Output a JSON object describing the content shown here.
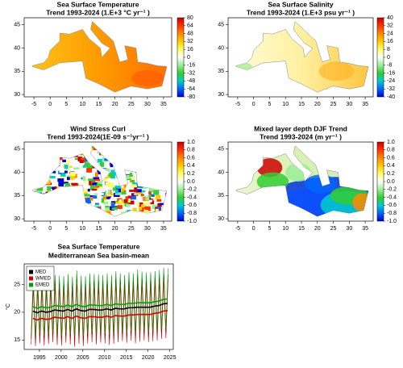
{
  "chart_data": [
    {
      "type": "map",
      "title": "Sea Surface Temperature",
      "subtitle": "Trend 1993-2024 (1.E+3 °C yr⁻¹ )",
      "xlim": [
        -8,
        37.5
      ],
      "ylim": [
        29.5,
        46.5
      ],
      "xticks": [
        -5,
        0,
        5,
        10,
        15,
        20,
        25,
        30,
        35
      ],
      "yticks": [
        30,
        35,
        40,
        45
      ],
      "cbar_lim": [
        -80,
        80
      ],
      "cbar_ticks": [
        80,
        64,
        48,
        32,
        16,
        0,
        -16,
        -32,
        -48,
        -64,
        -80
      ],
      "colormap": [
        "#0000cc",
        "#0066ff",
        "#00cccc",
        "#33cc33",
        "#99ee99",
        "#ffffff",
        "#ffff66",
        "#ffcc00",
        "#ff8800",
        "#ff3300",
        "#cc0000"
      ]
    },
    {
      "type": "map",
      "title": "Sea Surface Salinity",
      "subtitle": "Trend 1993-2024 (1.E+3 psu yr⁻¹ )",
      "xlim": [
        -8,
        37.5
      ],
      "ylim": [
        29.5,
        46.5
      ],
      "xticks": [
        -5,
        0,
        5,
        10,
        15,
        20,
        25,
        30,
        35
      ],
      "yticks": [
        30,
        35,
        40,
        45
      ],
      "cbar_lim": [
        -40,
        40
      ],
      "cbar_ticks": [
        40,
        32,
        24,
        16,
        8,
        0,
        -8,
        -16,
        -24,
        -32,
        -40
      ],
      "colormap": [
        "#0000cc",
        "#0066ff",
        "#00cccc",
        "#33cc33",
        "#99ee99",
        "#ffffff",
        "#ffff66",
        "#ffcc00",
        "#ff8800",
        "#ff3300",
        "#cc0000"
      ]
    },
    {
      "type": "map",
      "title": "Wind Stress Curl",
      "subtitle": "Trend 1993-2024(1E-09 s⁻¹yr⁻¹ )",
      "xlim": [
        -8,
        37.5
      ],
      "ylim": [
        29.5,
        46.5
      ],
      "xticks": [
        -5,
        0,
        5,
        10,
        15,
        20,
        25,
        30,
        35
      ],
      "yticks": [
        30,
        35,
        40,
        45
      ],
      "cbar_lim": [
        -1,
        1
      ],
      "cbar_ticks": [
        {
          "value": 1,
          "label": "1.0"
        },
        0.8,
        0.6,
        0.4,
        0.2,
        {
          "value": 0,
          "label": "0.0"
        },
        -0.2,
        -0.4,
        -0.6,
        -0.8,
        {
          "value": -1,
          "label": "-1.0"
        }
      ],
      "colormap": [
        "#0000cc",
        "#0066ff",
        "#00cccc",
        "#33cc33",
        "#99ee99",
        "#ffffff",
        "#ffff66",
        "#ffcc00",
        "#ff8800",
        "#ff3300",
        "#cc0000"
      ]
    },
    {
      "type": "map",
      "title": "Mixed layer depth DJF Trend",
      "subtitle": "Trend 1993-2024 (m yr⁻¹ )",
      "xlim": [
        -8,
        37.5
      ],
      "ylim": [
        29.5,
        46.5
      ],
      "xticks": [
        -5,
        0,
        5,
        10,
        15,
        20,
        25,
        30,
        35
      ],
      "yticks": [
        30,
        35,
        40,
        45
      ],
      "cbar_lim": [
        -1,
        1
      ],
      "cbar_ticks": [
        {
          "value": 1,
          "label": "1.0"
        },
        0.8,
        0.6,
        0.4,
        0.2,
        {
          "value": 0,
          "label": "0.0"
        },
        -0.2,
        -0.4,
        -0.6,
        -0.8,
        {
          "value": -1,
          "label": "-1.0"
        }
      ],
      "colormap": [
        "#0000cc",
        "#0066ff",
        "#00cccc",
        "#33cc33",
        "#99ee99",
        "#ffffff",
        "#ffff66",
        "#ffcc00",
        "#ff8800",
        "#ff3300",
        "#cc0000"
      ]
    },
    {
      "type": "line",
      "title": "Sea Surface Temperature",
      "subtitle": "Mediterranean Sea basin-mean",
      "y_label": "°C",
      "xlim": [
        1991.5,
        2025.8
      ],
      "ylim": [
        13.3,
        28.7
      ],
      "xticks": [
        1995,
        2000,
        2005,
        2010,
        2015,
        2020,
        2025
      ],
      "yticks": [
        15,
        20,
        25
      ],
      "legend": "top-left",
      "x": [
        1993.1,
        1993.6,
        1994.1,
        1994.6,
        1995.1,
        1995.6,
        1996.1,
        1996.6,
        1997.1,
        1997.6,
        1998.1,
        1998.6,
        1999.1,
        1999.6,
        2000.1,
        2000.6,
        2001.1,
        2001.6,
        2002.1,
        2002.6,
        2003.1,
        2003.6,
        2004.1,
        2004.6,
        2005.1,
        2005.6,
        2006.1,
        2006.6,
        2007.1,
        2007.6,
        2008.1,
        2008.6,
        2009.1,
        2009.6,
        2010.1,
        2010.6,
        2011.1,
        2011.6,
        2012.1,
        2012.6,
        2013.1,
        2013.6,
        2014.1,
        2014.6,
        2015.1,
        2015.6,
        2016.1,
        2016.6,
        2017.1,
        2017.6,
        2018.1,
        2018.6,
        2019.1,
        2019.6,
        2020.1,
        2020.6,
        2021.1,
        2021.6,
        2022.1,
        2022.6,
        2023.1,
        2023.6,
        2024.1,
        2024.6
      ],
      "mean_x": [
        1993.5,
        1994.5,
        1995.5,
        1996.5,
        1997.5,
        1998.5,
        1999.5,
        2000.5,
        2001.5,
        2002.5,
        2003.5,
        2004.5,
        2005.5,
        2006.5,
        2007.5,
        2008.5,
        2009.5,
        2010.5,
        2011.5,
        2012.5,
        2013.5,
        2014.5,
        2015.5,
        2016.5,
        2017.5,
        2018.5,
        2019.5,
        2020.5,
        2021.5,
        2022.5,
        2023.5,
        2024.5
      ],
      "series": [
        {
          "name": "MED",
          "color": "#000000",
          "values": [
            15.2,
            25.3,
            14.9,
            24.9,
            15.4,
            25.2,
            15.0,
            25.0,
            15.3,
            25.1,
            15.6,
            25.6,
            15.1,
            25.5,
            15.0,
            25.4,
            15.5,
            25.8,
            15.2,
            25.3,
            14.8,
            26.4,
            15.3,
            25.5,
            14.9,
            25.4,
            15.4,
            25.9,
            15.6,
            25.8,
            15.2,
            25.7,
            15.5,
            25.6,
            15.4,
            25.9,
            15.1,
            25.6,
            15.3,
            26.3,
            15.6,
            25.9,
            15.8,
            25.6,
            15.5,
            26.1,
            15.9,
            25.9,
            15.4,
            26.6,
            15.7,
            26.2,
            15.9,
            26.0,
            15.6,
            26.1,
            15.8,
            26.3,
            15.9,
            26.5,
            16.2,
            26.9,
            16.3,
            26.8
          ],
          "mean_values": [
            20.2,
            19.9,
            20.2,
            20.0,
            20.1,
            20.4,
            20.3,
            20.2,
            20.5,
            20.2,
            20.6,
            20.3,
            20.2,
            20.5,
            20.5,
            20.4,
            20.4,
            20.6,
            20.4,
            20.7,
            20.6,
            20.6,
            20.8,
            20.8,
            20.9,
            20.9,
            20.9,
            20.9,
            21.1,
            21.2,
            21.5,
            21.6
          ]
        },
        {
          "name": "WMED",
          "color": "#d40000",
          "values": [
            14.2,
            24.4,
            13.9,
            24.0,
            14.4,
            24.3,
            14.0,
            24.1,
            14.3,
            24.2,
            14.6,
            24.7,
            14.1,
            24.6,
            14.0,
            24.5,
            14.5,
            24.9,
            14.2,
            24.4,
            13.8,
            25.5,
            14.3,
            24.6,
            13.9,
            24.5,
            14.4,
            25.0,
            14.6,
            24.9,
            14.2,
            24.8,
            14.5,
            24.7,
            14.4,
            25.0,
            14.1,
            24.7,
            14.3,
            25.4,
            14.6,
            25.0,
            14.8,
            24.7,
            14.5,
            25.2,
            14.9,
            25.0,
            14.4,
            25.7,
            14.7,
            25.3,
            14.9,
            25.1,
            14.6,
            25.2,
            14.8,
            25.4,
            14.9,
            25.6,
            15.2,
            26.0,
            15.3,
            25.9
          ],
          "mean_values": [
            18.9,
            18.6,
            18.9,
            18.7,
            18.8,
            19.1,
            19.0,
            18.9,
            19.2,
            18.9,
            19.3,
            19.0,
            18.9,
            19.2,
            19.2,
            19.1,
            19.1,
            19.3,
            19.1,
            19.4,
            19.3,
            19.3,
            19.5,
            19.5,
            19.6,
            19.6,
            19.6,
            19.6,
            19.8,
            19.9,
            20.2,
            20.3
          ]
        },
        {
          "name": "EMED",
          "color": "#00a000",
          "values": [
            16.0,
            26.4,
            15.7,
            26.0,
            16.2,
            26.3,
            15.8,
            26.1,
            16.1,
            26.2,
            16.4,
            26.7,
            15.9,
            26.6,
            15.8,
            26.5,
            16.3,
            26.9,
            16.0,
            26.4,
            15.6,
            27.5,
            16.1,
            26.6,
            15.7,
            26.5,
            16.2,
            27.0,
            16.4,
            26.9,
            16.0,
            26.8,
            16.3,
            26.7,
            16.2,
            27.0,
            15.9,
            26.7,
            16.1,
            27.4,
            16.4,
            27.0,
            16.6,
            26.7,
            16.3,
            27.2,
            16.7,
            27.0,
            16.2,
            27.7,
            16.5,
            27.3,
            16.7,
            27.1,
            16.4,
            27.2,
            16.6,
            27.4,
            16.7,
            27.6,
            17.0,
            28.0,
            17.1,
            27.9
          ],
          "mean_values": [
            21.0,
            20.7,
            21.0,
            20.8,
            20.9,
            21.2,
            21.1,
            21.0,
            21.3,
            21.0,
            21.4,
            21.1,
            21.0,
            21.3,
            21.3,
            21.2,
            21.2,
            21.4,
            21.2,
            21.5,
            21.4,
            21.4,
            21.6,
            21.6,
            21.7,
            21.7,
            21.7,
            21.7,
            21.9,
            22.0,
            22.3,
            22.4
          ]
        }
      ]
    }
  ]
}
